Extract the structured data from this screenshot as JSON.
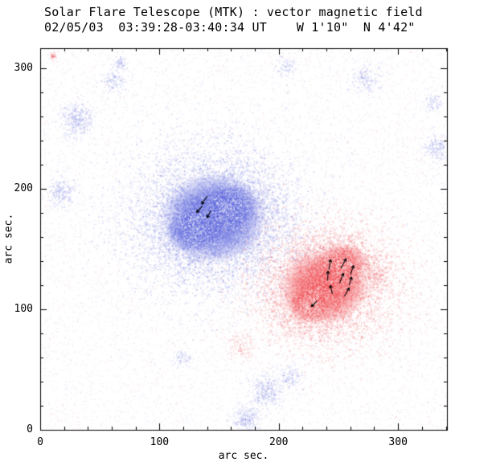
{
  "chart_data": {
    "type": "heatmap",
    "title": "Solar Flare Telescope (MTK) : vector magnetic field",
    "subtitle": "02/05/03  03:39:28-03:40:34 UT    W 1'10\"  N 4'42\"",
    "xlabel": "arc sec.",
    "ylabel": "arc sec.",
    "xlim": [
      0,
      341
    ],
    "ylim": [
      0,
      317
    ],
    "x_ticks": [
      0,
      100,
      200,
      300
    ],
    "y_ticks": [
      0,
      100,
      200,
      300
    ],
    "minor_tick_interval": 20,
    "grid": false,
    "legend": "none",
    "colors": {
      "negative_polarity": "#5a64dc",
      "positive_polarity": "#f04a50",
      "frame": "#000000",
      "background": "#ffffff",
      "arrows": "#000000"
    },
    "polarity_regions": [
      {
        "polarity": "negative",
        "core_alpha": 0.88,
        "fringe_points": 9000,
        "components": [
          {
            "x": 145,
            "y": 176,
            "sx": 26,
            "sy": 22
          },
          {
            "x": 128,
            "y": 166,
            "sx": 13,
            "sy": 11
          },
          {
            "x": 160,
            "y": 186,
            "sx": 14,
            "sy": 11
          }
        ]
      },
      {
        "polarity": "positive",
        "core_alpha": 0.85,
        "fringe_points": 7500,
        "components": [
          {
            "x": 238,
            "y": 119,
            "sx": 22,
            "sy": 18
          },
          {
            "x": 254,
            "y": 138,
            "sx": 12,
            "sy": 10
          },
          {
            "x": 226,
            "y": 104,
            "sx": 11,
            "sy": 9
          }
        ]
      }
    ],
    "noise_clusters": [
      {
        "x": 30,
        "y": 258,
        "r": 9,
        "color": "negative",
        "points": 420
      },
      {
        "x": 17,
        "y": 197,
        "r": 7,
        "color": "negative",
        "points": 260
      },
      {
        "x": 61,
        "y": 289,
        "r": 6,
        "color": "negative",
        "points": 150
      },
      {
        "x": 273,
        "y": 291,
        "r": 8,
        "color": "negative",
        "points": 200
      },
      {
        "x": 332,
        "y": 234,
        "r": 7,
        "color": "negative",
        "points": 220
      },
      {
        "x": 329,
        "y": 272,
        "r": 5,
        "color": "negative",
        "points": 90
      },
      {
        "x": 189,
        "y": 32,
        "r": 9,
        "color": "negative",
        "points": 380
      },
      {
        "x": 172,
        "y": 10,
        "r": 8,
        "color": "negative",
        "points": 300
      },
      {
        "x": 210,
        "y": 44,
        "r": 6,
        "color": "negative",
        "points": 140
      },
      {
        "x": 120,
        "y": 60,
        "r": 5,
        "color": "negative",
        "points": 90
      },
      {
        "x": 67,
        "y": 306,
        "r": 4,
        "color": "negative",
        "points": 80
      },
      {
        "x": 205,
        "y": 302,
        "r": 5,
        "color": "negative",
        "points": 90
      },
      {
        "x": 168,
        "y": 70,
        "r": 7,
        "color": "positive",
        "points": 150
      },
      {
        "x": 284,
        "y": 128,
        "r": 6,
        "color": "positive",
        "points": 130
      },
      {
        "x": 10,
        "y": 311,
        "r": 2,
        "color": "positive",
        "points": 60
      }
    ],
    "background_noise": {
      "points": 10000,
      "blue_fraction": 0.55,
      "alpha": 0.1
    },
    "vector_arrows": [
      {
        "x": 140,
        "y": 194,
        "angle": 235,
        "len": 12
      },
      {
        "x": 136,
        "y": 186,
        "angle": 228,
        "len": 11
      },
      {
        "x": 143,
        "y": 182,
        "angle": 242,
        "len": 10
      },
      {
        "x": 242,
        "y": 133,
        "angle": 80,
        "len": 13
      },
      {
        "x": 252,
        "y": 134,
        "angle": 62,
        "len": 14
      },
      {
        "x": 260,
        "y": 129,
        "angle": 70,
        "len": 12
      },
      {
        "x": 241,
        "y": 124,
        "angle": 88,
        "len": 12
      },
      {
        "x": 251,
        "y": 122,
        "angle": 68,
        "len": 13
      },
      {
        "x": 259,
        "y": 120,
        "angle": 74,
        "len": 11
      },
      {
        "x": 245,
        "y": 113,
        "angle": 105,
        "len": 11
      },
      {
        "x": 255,
        "y": 111,
        "angle": 60,
        "len": 12
      },
      {
        "x": 232,
        "y": 107,
        "angle": 225,
        "len": 10
      }
    ]
  }
}
